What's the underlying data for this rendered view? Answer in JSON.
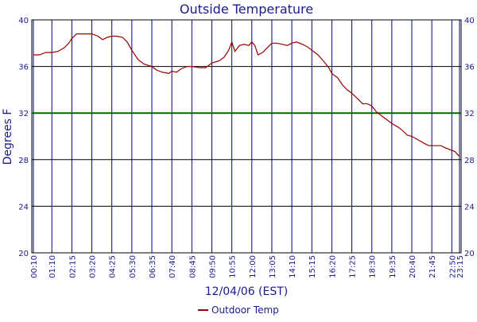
{
  "chart_data": {
    "type": "line",
    "title": "Outside Temperature",
    "xlabel": "12/04/06 (EST)",
    "ylabel": "Degrees F",
    "ylim": [
      20,
      40
    ],
    "yticks": [
      "20",
      "24",
      "28",
      "32",
      "36",
      "40"
    ],
    "x_tick_labels": [
      "00:10",
      "01:10",
      "02:15",
      "03:20",
      "04:25",
      "05:30",
      "06:35",
      "07:40",
      "08:45",
      "09:50",
      "10:55",
      "12:00",
      "13:05",
      "14:10",
      "15:15",
      "16:20",
      "17:25",
      "18:30",
      "19:35",
      "20:40",
      "21:45",
      "22:50",
      "23:15"
    ],
    "grid": true,
    "reference_line": {
      "value": 32,
      "color": "#006600"
    },
    "legend_position": "bottom",
    "series": [
      {
        "name": "Outdoor Temp",
        "color": "#990000",
        "points": [
          [
            "00:10",
            37.0
          ],
          [
            "00:30",
            37.0
          ],
          [
            "00:50",
            37.2
          ],
          [
            "01:10",
            37.2
          ],
          [
            "01:30",
            37.3
          ],
          [
            "01:50",
            37.6
          ],
          [
            "02:05",
            38.0
          ],
          [
            "02:15",
            38.4
          ],
          [
            "02:30",
            38.8
          ],
          [
            "02:50",
            38.8
          ],
          [
            "03:10",
            38.8
          ],
          [
            "03:20",
            38.8
          ],
          [
            "03:40",
            38.6
          ],
          [
            "03:55",
            38.3
          ],
          [
            "04:10",
            38.5
          ],
          [
            "04:25",
            38.6
          ],
          [
            "04:40",
            38.6
          ],
          [
            "05:00",
            38.5
          ],
          [
            "05:15",
            38.1
          ],
          [
            "05:30",
            37.4
          ],
          [
            "05:50",
            36.6
          ],
          [
            "06:10",
            36.2
          ],
          [
            "06:35",
            36.0
          ],
          [
            "06:50",
            35.7
          ],
          [
            "07:10",
            35.5
          ],
          [
            "07:30",
            35.4
          ],
          [
            "07:40",
            35.6
          ],
          [
            "07:55",
            35.5
          ],
          [
            "08:10",
            35.8
          ],
          [
            "08:30",
            36.0
          ],
          [
            "08:45",
            36.0
          ],
          [
            "09:10",
            35.9
          ],
          [
            "09:30",
            35.9
          ],
          [
            "09:50",
            36.3
          ],
          [
            "10:15",
            36.5
          ],
          [
            "10:30",
            36.8
          ],
          [
            "10:45",
            37.4
          ],
          [
            "10:55",
            38.1
          ],
          [
            "11:05",
            37.3
          ],
          [
            "11:20",
            37.8
          ],
          [
            "11:35",
            37.9
          ],
          [
            "11:50",
            37.8
          ],
          [
            "12:00",
            38.1
          ],
          [
            "12:10",
            37.8
          ],
          [
            "12:20",
            37.0
          ],
          [
            "12:35",
            37.2
          ],
          [
            "12:50",
            37.6
          ],
          [
            "13:05",
            38.0
          ],
          [
            "13:20",
            38.0
          ],
          [
            "13:40",
            37.9
          ],
          [
            "13:55",
            37.8
          ],
          [
            "14:10",
            38.0
          ],
          [
            "14:25",
            38.1
          ],
          [
            "14:45",
            37.9
          ],
          [
            "15:00",
            37.7
          ],
          [
            "15:15",
            37.4
          ],
          [
            "15:35",
            37.0
          ],
          [
            "15:55",
            36.4
          ],
          [
            "16:10",
            35.9
          ],
          [
            "16:20",
            35.4
          ],
          [
            "16:40",
            35.0
          ],
          [
            "16:55",
            34.4
          ],
          [
            "17:10",
            34.0
          ],
          [
            "17:25",
            33.7
          ],
          [
            "17:45",
            33.2
          ],
          [
            "18:00",
            32.8
          ],
          [
            "18:15",
            32.8
          ],
          [
            "18:30",
            32.6
          ],
          [
            "18:45",
            32.1
          ],
          [
            "19:00",
            31.8
          ],
          [
            "19:20",
            31.4
          ],
          [
            "19:35",
            31.1
          ],
          [
            "19:55",
            30.8
          ],
          [
            "20:10",
            30.5
          ],
          [
            "20:25",
            30.1
          ],
          [
            "20:40",
            30.0
          ],
          [
            "21:00",
            29.7
          ],
          [
            "21:20",
            29.4
          ],
          [
            "21:35",
            29.2
          ],
          [
            "21:45",
            29.2
          ],
          [
            "22:00",
            29.2
          ],
          [
            "22:15",
            29.2
          ],
          [
            "22:30",
            29.0
          ],
          [
            "22:50",
            28.8
          ],
          [
            "23:00",
            28.7
          ],
          [
            "23:10",
            28.4
          ],
          [
            "23:15",
            28.3
          ]
        ]
      }
    ]
  }
}
